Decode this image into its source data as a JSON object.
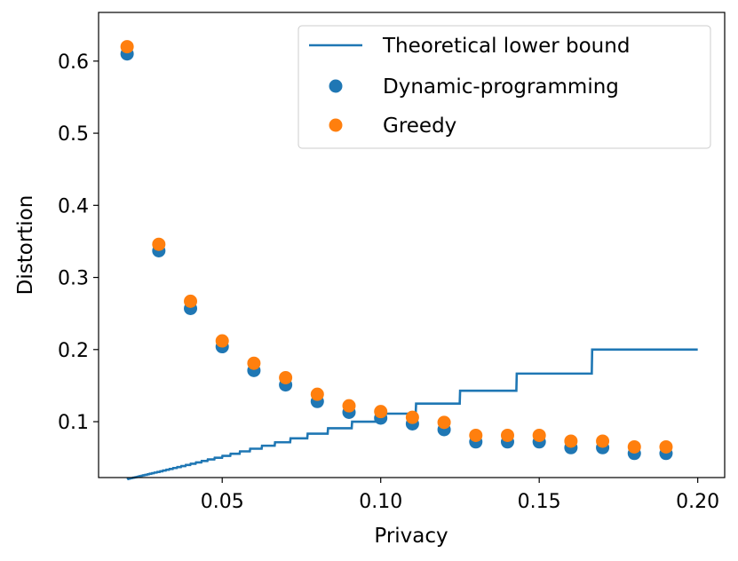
{
  "chart_data": {
    "type": "scatter",
    "title": "",
    "xlabel": "Privacy",
    "ylabel": "Distortion",
    "xlim": [
      0.011,
      0.2085
    ],
    "ylim": [
      0.0225,
      0.6675
    ],
    "xticks": [
      0.05,
      0.1,
      0.15,
      0.2
    ],
    "xtick_labels": [
      "0.05",
      "0.10",
      "0.15",
      "0.20"
    ],
    "yticks": [
      0.1,
      0.2,
      0.3,
      0.4,
      0.5,
      0.6
    ],
    "ytick_labels": [
      "0.1",
      "0.2",
      "0.3",
      "0.4",
      "0.5",
      "0.6"
    ],
    "grid": false,
    "legend_position": "top-right",
    "series": [
      {
        "name": "Theoretical lower bound",
        "kind": "line",
        "color": "#1f77b4",
        "x_range": [
          0.02,
          0.2
        ],
        "formula": "floor(1/x)^-1 step curve: y = 1 / floor(1/x)"
      },
      {
        "name": "Dynamic-programming",
        "kind": "scatter",
        "color": "#1f77b4",
        "x": [
          0.02,
          0.03,
          0.04,
          0.05,
          0.06,
          0.07,
          0.08,
          0.09,
          0.1,
          0.11,
          0.12,
          0.13,
          0.14,
          0.15,
          0.16,
          0.17,
          0.18,
          0.19
        ],
        "y": [
          0.61,
          0.337,
          0.257,
          0.204,
          0.171,
          0.151,
          0.128,
          0.113,
          0.105,
          0.097,
          0.089,
          0.072,
          0.072,
          0.072,
          0.064,
          0.064,
          0.056,
          0.056
        ]
      },
      {
        "name": "Greedy",
        "kind": "scatter",
        "color": "#ff7f0e",
        "x": [
          0.02,
          0.03,
          0.04,
          0.05,
          0.06,
          0.07,
          0.08,
          0.09,
          0.1,
          0.11,
          0.12,
          0.13,
          0.14,
          0.15,
          0.16,
          0.17,
          0.18,
          0.19
        ],
        "y": [
          0.62,
          0.346,
          0.267,
          0.212,
          0.181,
          0.161,
          0.138,
          0.122,
          0.114,
          0.106,
          0.099,
          0.081,
          0.081,
          0.081,
          0.073,
          0.073,
          0.065,
          0.065
        ]
      }
    ]
  }
}
